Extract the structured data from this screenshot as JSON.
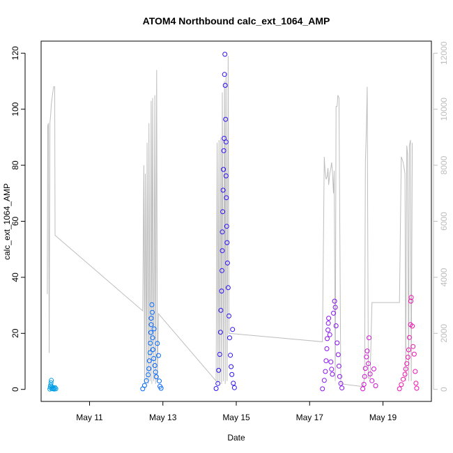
{
  "chart_data": {
    "type": "scatter",
    "title": "ATOM4 Northbound calc_ext_1064_AMP",
    "xlabel": "Date",
    "ylabel": "calc_ext_1064_AMP",
    "x_ticks": [
      "May 11",
      "May 13",
      "May 15",
      "May 17",
      "May 19"
    ],
    "x_tick_values": [
      11,
      13,
      15,
      17,
      19
    ],
    "xlim": [
      9.68,
      20.32
    ],
    "ylim": [
      -4.3,
      124.3
    ],
    "y_ticks": [
      0,
      20,
      40,
      60,
      80,
      100,
      120
    ],
    "y2_ticks": [
      0,
      2000,
      4000,
      6000,
      8000,
      10000,
      12000
    ],
    "y2lim": [
      -430,
      12430
    ],
    "y2_color": "#bdbdbd",
    "line_color": "#bdbdbd",
    "grid": false,
    "series": [
      {
        "color": "#009ee6",
        "points": [
          [
            9.92,
            0.1
          ],
          [
            9.93,
            0.8
          ],
          [
            9.94,
            1.5
          ],
          [
            9.95,
            2.4
          ],
          [
            9.96,
            3.2
          ],
          [
            9.97,
            0.3
          ],
          [
            9.98,
            0.9
          ],
          [
            10.0,
            0.2
          ],
          [
            10.02,
            0.5
          ],
          [
            10.04,
            0.1
          ],
          [
            10.06,
            0.6
          ],
          [
            10.08,
            0.2
          ]
        ]
      },
      {
        "color": "#0066ff",
        "points": [
          [
            12.45,
            0.2
          ],
          [
            12.5,
            1.4
          ],
          [
            12.55,
            3.1
          ],
          [
            12.6,
            5.2
          ],
          [
            12.62,
            7.4
          ],
          [
            12.63,
            10.2
          ],
          [
            12.65,
            13.1
          ],
          [
            12.66,
            16.5
          ],
          [
            12.67,
            20.3
          ],
          [
            12.68,
            23.1
          ],
          [
            12.68,
            25.4
          ],
          [
            12.7,
            30.2
          ],
          [
            12.71,
            27.5
          ],
          [
            12.72,
            18.4
          ],
          [
            12.73,
            14.2
          ],
          [
            12.75,
            11.0
          ],
          [
            12.76,
            21.6
          ],
          [
            12.78,
            8.5
          ],
          [
            12.8,
            6.2
          ],
          [
            12.82,
            4.5
          ],
          [
            12.85,
            16.4
          ],
          [
            12.88,
            12.1
          ],
          [
            12.9,
            3.0
          ],
          [
            12.92,
            1.1
          ],
          [
            12.95,
            0.4
          ]
        ]
      },
      {
        "color": "#2a10f5",
        "points": [
          [
            14.45,
            0.3
          ],
          [
            14.5,
            2.1
          ],
          [
            14.52,
            6.8
          ],
          [
            14.55,
            12.5
          ],
          [
            14.57,
            20.4
          ],
          [
            14.58,
            28.2
          ],
          [
            14.6,
            35.1
          ],
          [
            14.61,
            42.4
          ],
          [
            14.62,
            49.5
          ],
          [
            14.62,
            56.2
          ],
          [
            14.63,
            63.4
          ],
          [
            14.64,
            71.1
          ],
          [
            14.65,
            78.5
          ],
          [
            14.66,
            85.2
          ],
          [
            14.67,
            89.6
          ],
          [
            14.68,
            112.4
          ],
          [
            14.69,
            119.6
          ],
          [
            14.7,
            108.5
          ],
          [
            14.71,
            96.4
          ],
          [
            14.72,
            88.3
          ],
          [
            14.72,
            76.2
          ],
          [
            14.73,
            68.4
          ],
          [
            14.74,
            58.2
          ],
          [
            14.75,
            52.4
          ],
          [
            14.76,
            45.1
          ],
          [
            14.78,
            36.3
          ],
          [
            14.8,
            26.2
          ],
          [
            14.82,
            18.4
          ],
          [
            14.84,
            12.2
          ],
          [
            14.86,
            8.1
          ],
          [
            14.88,
            5.3
          ],
          [
            14.9,
            21.4
          ],
          [
            14.92,
            2.2
          ],
          [
            14.95,
            0.6
          ]
        ]
      },
      {
        "color": "#8a10f0",
        "points": [
          [
            17.35,
            0.2
          ],
          [
            17.4,
            3.2
          ],
          [
            17.43,
            6.4
          ],
          [
            17.45,
            10.2
          ],
          [
            17.47,
            14.5
          ],
          [
            17.48,
            18.1
          ],
          [
            17.5,
            21.2
          ],
          [
            17.51,
            23.6
          ],
          [
            17.52,
            25.4
          ],
          [
            17.55,
            19.5
          ],
          [
            17.58,
            9.8
          ],
          [
            17.6,
            7.2
          ],
          [
            17.62,
            5.4
          ],
          [
            17.65,
            27.2
          ],
          [
            17.68,
            31.5
          ],
          [
            17.7,
            29.3
          ],
          [
            17.72,
            22.7
          ],
          [
            17.75,
            16.6
          ],
          [
            17.78,
            12.4
          ],
          [
            17.8,
            8.3
          ],
          [
            17.82,
            4.6
          ],
          [
            17.85,
            2.1
          ],
          [
            17.88,
            0.5
          ]
        ]
      },
      {
        "color": "#d010d0",
        "points": [
          [
            18.45,
            0.2
          ],
          [
            18.48,
            1.8
          ],
          [
            18.5,
            4.6
          ],
          [
            18.52,
            7.5
          ],
          [
            18.55,
            11.6
          ],
          [
            18.57,
            13.7
          ],
          [
            18.6,
            9.2
          ],
          [
            18.62,
            18.4
          ],
          [
            18.65,
            5.5
          ],
          [
            18.7,
            3.1
          ],
          [
            18.75,
            7.3
          ],
          [
            18.8,
            1.3
          ]
        ]
      },
      {
        "color": "#f012b0",
        "points": [
          [
            19.45,
            0.2
          ],
          [
            19.5,
            1.7
          ],
          [
            19.55,
            3.6
          ],
          [
            19.6,
            5.4
          ],
          [
            19.62,
            7.3
          ],
          [
            19.65,
            9.2
          ],
          [
            19.68,
            11.5
          ],
          [
            19.7,
            14.1
          ],
          [
            19.72,
            18.5
          ],
          [
            19.75,
            23.1
          ],
          [
            19.76,
            31.5
          ],
          [
            19.77,
            32.8
          ],
          [
            19.8,
            22.6
          ],
          [
            19.82,
            15.3
          ],
          [
            19.85,
            12.6
          ],
          [
            19.88,
            6.4
          ],
          [
            19.9,
            2.2
          ],
          [
            19.92,
            0.4
          ]
        ]
      }
    ],
    "secondary_line": {
      "y2_axis": true,
      "points": [
        [
          9.85,
          3400
        ],
        [
          9.86,
          9400
        ],
        [
          9.88,
          9500
        ],
        [
          9.9,
          1300
        ],
        [
          9.92,
          9500
        ],
        [
          9.94,
          9800
        ],
        [
          9.96,
          10200
        ],
        [
          10.02,
          10800
        ],
        [
          10.05,
          10800
        ],
        [
          10.06,
          5500
        ],
        [
          12.45,
          2800
        ],
        [
          12.48,
          8000
        ],
        [
          12.5,
          200
        ],
        [
          12.52,
          7700
        ],
        [
          12.55,
          300
        ],
        [
          12.57,
          8800
        ],
        [
          12.6,
          200
        ],
        [
          12.62,
          9500
        ],
        [
          12.65,
          300
        ],
        [
          12.68,
          10300
        ],
        [
          12.7,
          200
        ],
        [
          12.72,
          10400
        ],
        [
          12.75,
          300
        ],
        [
          12.78,
          10500
        ],
        [
          12.8,
          200
        ],
        [
          12.83,
          11400
        ],
        [
          12.85,
          300
        ],
        [
          12.88,
          2700
        ],
        [
          14.45,
          300
        ],
        [
          14.48,
          8800
        ],
        [
          14.5,
          200
        ],
        [
          14.53,
          8900
        ],
        [
          14.55,
          300
        ],
        [
          14.58,
          9000
        ],
        [
          14.6,
          200
        ],
        [
          14.62,
          10600
        ],
        [
          14.65,
          300
        ],
        [
          14.68,
          11000
        ],
        [
          14.7,
          200
        ],
        [
          14.72,
          11300
        ],
        [
          14.75,
          300
        ],
        [
          14.78,
          11900
        ],
        [
          14.8,
          2000
        ],
        [
          17.35,
          1700
        ],
        [
          17.4,
          8300
        ],
        [
          17.42,
          7800
        ],
        [
          17.45,
          7500
        ],
        [
          17.48,
          7600
        ],
        [
          17.5,
          7900
        ],
        [
          17.52,
          7300
        ],
        [
          17.55,
          7700
        ],
        [
          17.58,
          7900
        ],
        [
          17.6,
          8100
        ],
        [
          17.62,
          7800
        ],
        [
          17.65,
          7000
        ],
        [
          17.67,
          7800
        ],
        [
          17.7,
          300
        ],
        [
          17.72,
          10100
        ],
        [
          17.75,
          10100
        ],
        [
          17.77,
          10500
        ],
        [
          17.8,
          10400
        ],
        [
          17.85,
          200
        ],
        [
          18.45,
          100
        ],
        [
          18.5,
          400
        ],
        [
          18.52,
          8100
        ],
        [
          18.55,
          9400
        ],
        [
          18.57,
          10800
        ],
        [
          18.6,
          400
        ],
        [
          18.65,
          400
        ],
        [
          18.7,
          3100
        ],
        [
          19.45,
          3100
        ],
        [
          19.5,
          8300
        ],
        [
          19.55,
          8100
        ],
        [
          19.6,
          7700
        ],
        [
          19.62,
          300
        ],
        [
          19.65,
          8700
        ],
        [
          19.67,
          8400
        ],
        [
          19.7,
          300
        ],
        [
          19.72,
          8700
        ],
        [
          19.75,
          8900
        ],
        [
          19.77,
          300
        ],
        [
          19.8,
          8800
        ]
      ]
    }
  }
}
